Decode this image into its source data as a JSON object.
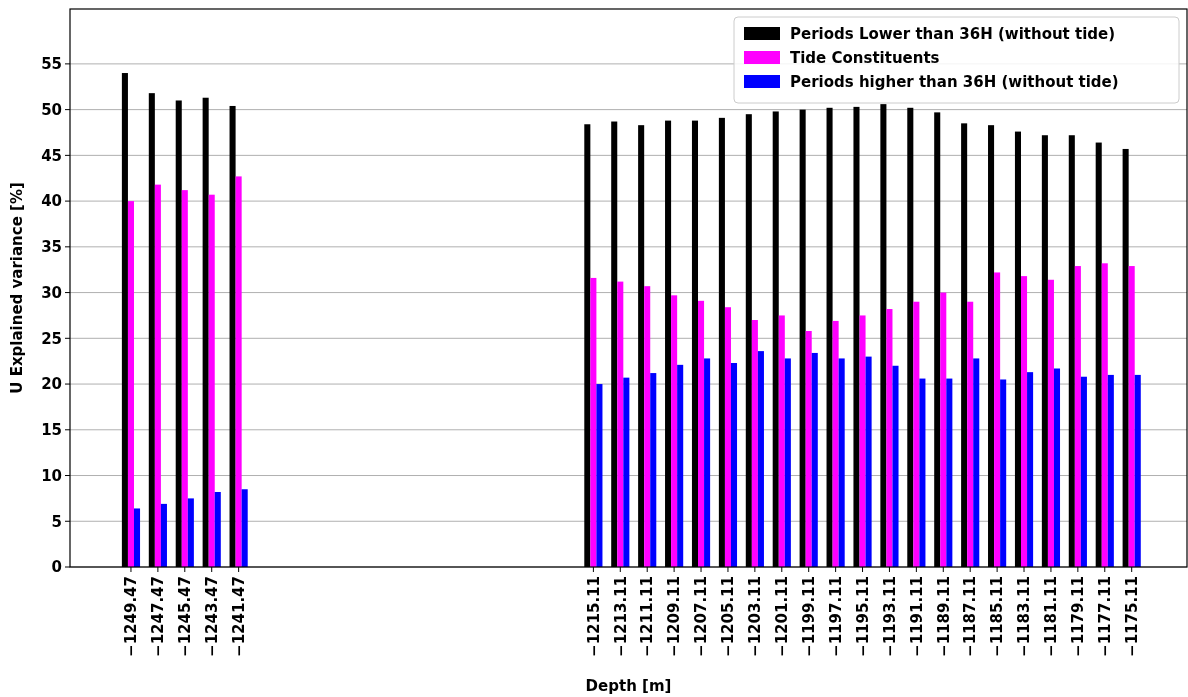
{
  "chart_data": {
    "type": "bar",
    "xlabel": "Depth [m]",
    "ylabel": "U Explained variance [%]",
    "x": [
      -1249.47,
      -1247.47,
      -1245.47,
      -1243.47,
      -1241.47,
      -1215.11,
      -1213.11,
      -1211.11,
      -1209.11,
      -1207.11,
      -1205.11,
      -1203.11,
      -1201.11,
      -1199.11,
      -1197.11,
      -1195.11,
      -1193.11,
      -1191.11,
      -1189.11,
      -1187.11,
      -1185.11,
      -1183.11,
      -1181.11,
      -1179.11,
      -1177.11,
      -1175.11
    ],
    "xlim": [
      -1254,
      -1171
    ],
    "xticks": [
      {
        "value": -1249.47,
        "label": "−1249.47"
      },
      {
        "value": -1247.47,
        "label": "−1247.47"
      },
      {
        "value": -1245.47,
        "label": "−1245.47"
      },
      {
        "value": -1243.47,
        "label": "−1243.47"
      },
      {
        "value": -1241.47,
        "label": "−1241.47"
      },
      {
        "value": -1215.11,
        "label": "−1215.11"
      },
      {
        "value": -1213.11,
        "label": "−1213.11"
      },
      {
        "value": -1211.11,
        "label": "−1211.11"
      },
      {
        "value": -1209.11,
        "label": "−1209.11"
      },
      {
        "value": -1207.11,
        "label": "−1207.11"
      },
      {
        "value": -1205.11,
        "label": "−1205.11"
      },
      {
        "value": -1203.11,
        "label": "−1203.11"
      },
      {
        "value": -1201.11,
        "label": "−1201.11"
      },
      {
        "value": -1199.11,
        "label": "−1199.11"
      },
      {
        "value": -1197.11,
        "label": "−1197.11"
      },
      {
        "value": -1195.11,
        "label": "−1195.11"
      },
      {
        "value": -1193.11,
        "label": "−1193.11"
      },
      {
        "value": -1191.11,
        "label": "−1191.11"
      },
      {
        "value": -1189.11,
        "label": "−1189.11"
      },
      {
        "value": -1187.11,
        "label": "−1187.11"
      },
      {
        "value": -1185.11,
        "label": "−1185.11"
      },
      {
        "value": -1183.11,
        "label": "−1183.11"
      },
      {
        "value": -1181.11,
        "label": "−1181.11"
      },
      {
        "value": -1179.11,
        "label": "−1179.11"
      },
      {
        "value": -1177.11,
        "label": "−1177.11"
      },
      {
        "value": -1175.11,
        "label": "−1175.11"
      }
    ],
    "ylim": [
      0,
      61
    ],
    "yticks": [
      0,
      5,
      10,
      15,
      20,
      25,
      30,
      35,
      40,
      45,
      50,
      55
    ],
    "grid": "y",
    "legend": "top right",
    "series": [
      {
        "name": "Periods Lower than 36H (without tide)",
        "color": "#000000",
        "values": [
          54.0,
          51.8,
          51.0,
          51.3,
          50.4,
          48.4,
          48.7,
          48.3,
          48.8,
          48.8,
          49.1,
          49.5,
          49.8,
          50.0,
          50.2,
          50.3,
          50.6,
          50.2,
          49.7,
          48.5,
          48.3,
          47.6,
          47.2,
          47.2,
          46.4,
          45.7
        ]
      },
      {
        "name": "Tide Constituents",
        "color": "#ff00ff",
        "values": [
          40.0,
          41.8,
          41.2,
          40.7,
          42.7,
          31.6,
          31.2,
          30.7,
          29.7,
          29.1,
          28.4,
          27.0,
          27.5,
          25.8,
          26.9,
          27.5,
          28.2,
          29.0,
          30.0,
          29.0,
          32.2,
          31.8,
          31.4,
          32.9,
          33.2,
          32.9
        ]
      },
      {
        "name": "Periods higher than 36H (without tide)",
        "color": "#0000ff",
        "values": [
          6.4,
          6.9,
          7.5,
          8.2,
          8.5,
          20.0,
          20.7,
          21.2,
          22.1,
          22.8,
          22.3,
          23.6,
          22.8,
          23.4,
          22.8,
          23.0,
          22.0,
          20.6,
          20.6,
          22.8,
          20.5,
          21.3,
          21.7,
          20.8,
          21.0,
          21.0
        ]
      }
    ]
  }
}
